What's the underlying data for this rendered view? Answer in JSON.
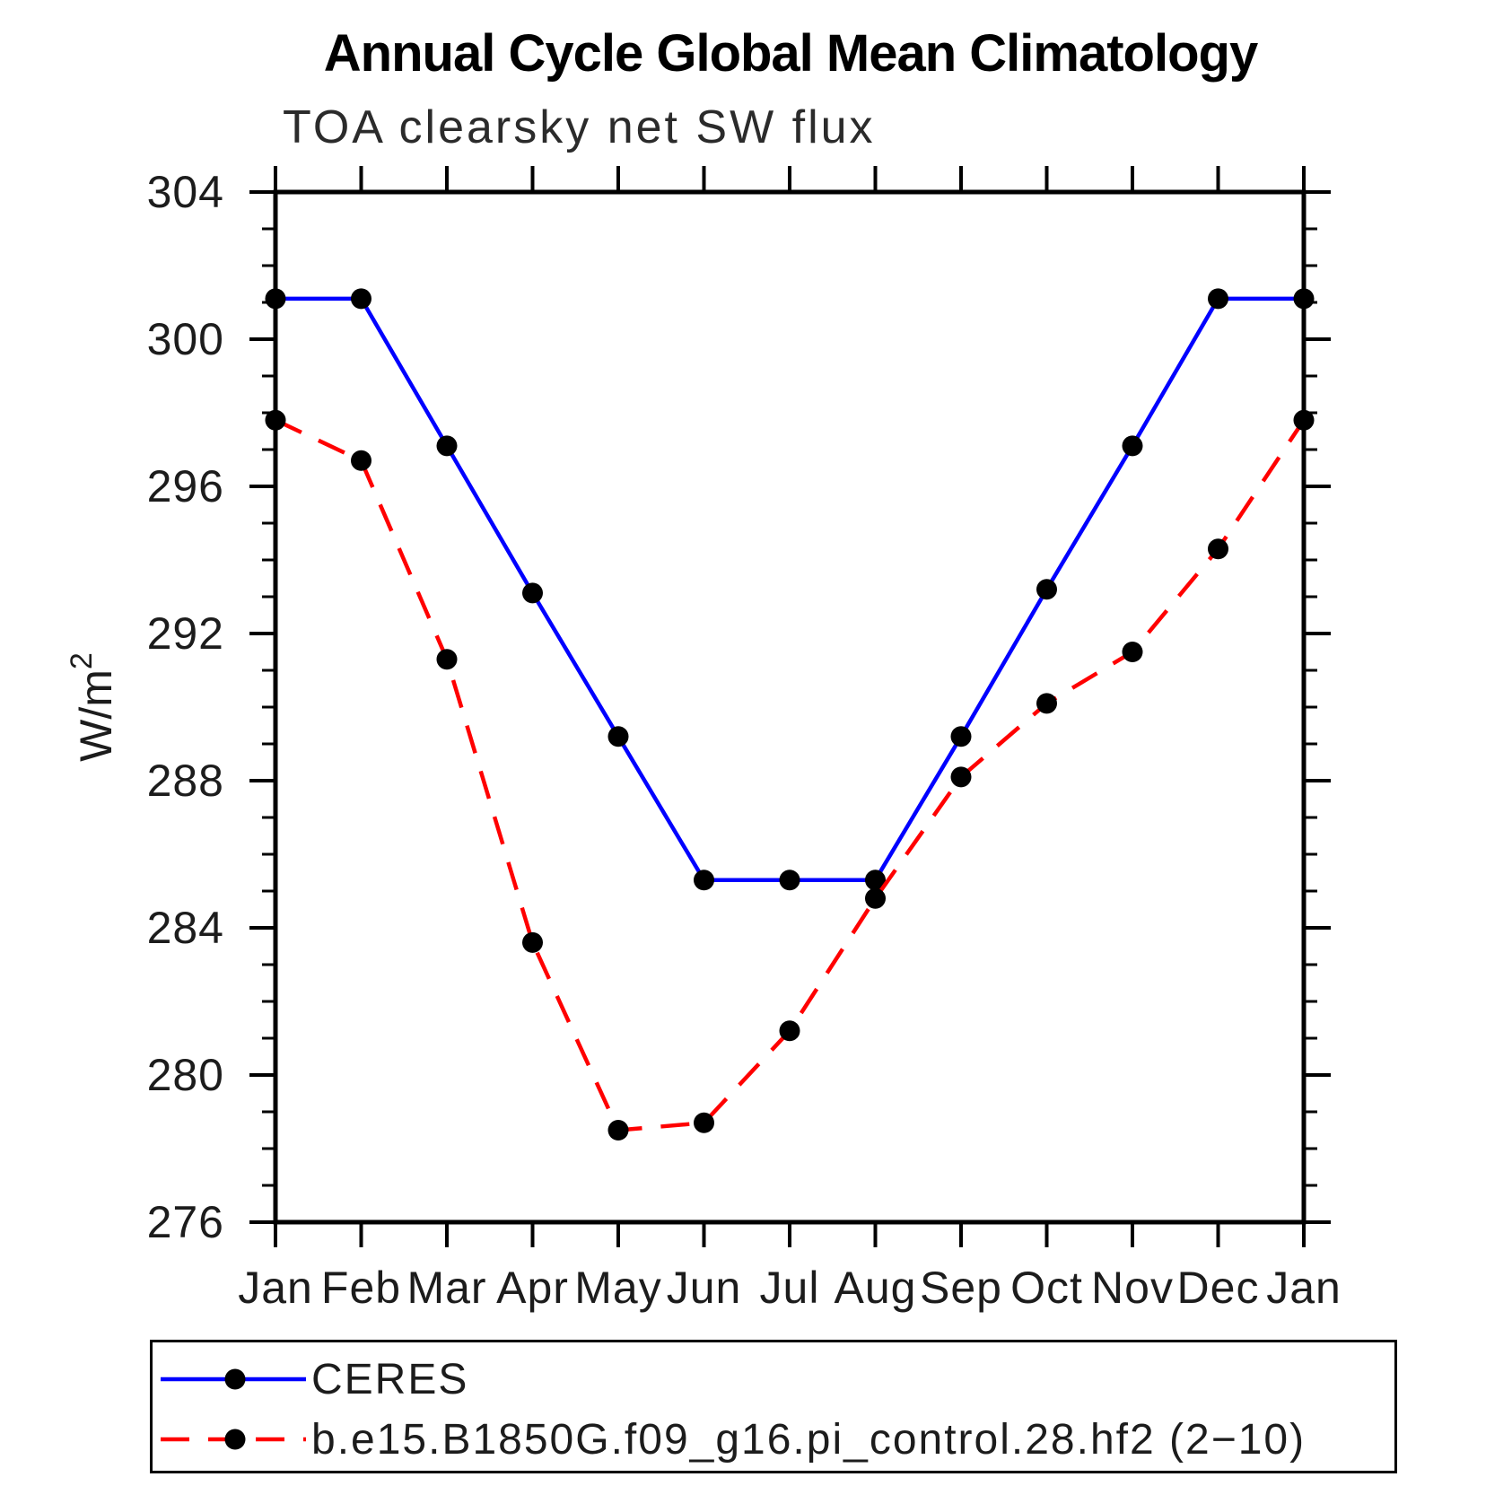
{
  "title": "Annual Cycle Global Mean Climatology",
  "subtitle": "TOA clearsky net SW flux",
  "y_axis_label": {
    "base": "W/m",
    "sup": "2"
  },
  "colors": {
    "ceres_line": "#0000ff",
    "model_line": "#ff0000",
    "marker": "#000000",
    "axis": "#000000",
    "text": "#1c1c1c"
  },
  "chart_data": {
    "type": "line",
    "categories": [
      "Jan",
      "Feb",
      "Mar",
      "Apr",
      "May",
      "Jun",
      "Jul",
      "Aug",
      "Sep",
      "Oct",
      "Nov",
      "Dec",
      "Jan"
    ],
    "series": [
      {
        "name": "CERES",
        "color": "#0000ff",
        "style": "solid",
        "marker": "circle",
        "marker_color": "#000000",
        "values": [
          301.1,
          301.1,
          297.1,
          293.1,
          289.2,
          285.3,
          285.3,
          285.3,
          289.2,
          293.2,
          297.1,
          301.1,
          301.1
        ]
      },
      {
        "name": "b.e15.B1850G.f09_g16.pi_control.28.hf2 (2−10)",
        "color": "#ff0000",
        "style": "dashed",
        "marker": "circle",
        "marker_color": "#000000",
        "values": [
          297.8,
          296.7,
          291.3,
          283.6,
          278.5,
          278.7,
          281.2,
          284.8,
          288.1,
          290.1,
          291.5,
          294.3,
          297.8
        ]
      }
    ],
    "title": "Annual Cycle Global Mean Climatology",
    "subtitle": "TOA clearsky net SW flux",
    "xlabel": "",
    "ylabel": "W/m2",
    "ylim": [
      276,
      304
    ],
    "y_major_ticks": [
      276,
      280,
      284,
      288,
      292,
      296,
      300,
      304
    ],
    "y_minor_step": 1,
    "grid": false,
    "legend_position": "bottom"
  }
}
